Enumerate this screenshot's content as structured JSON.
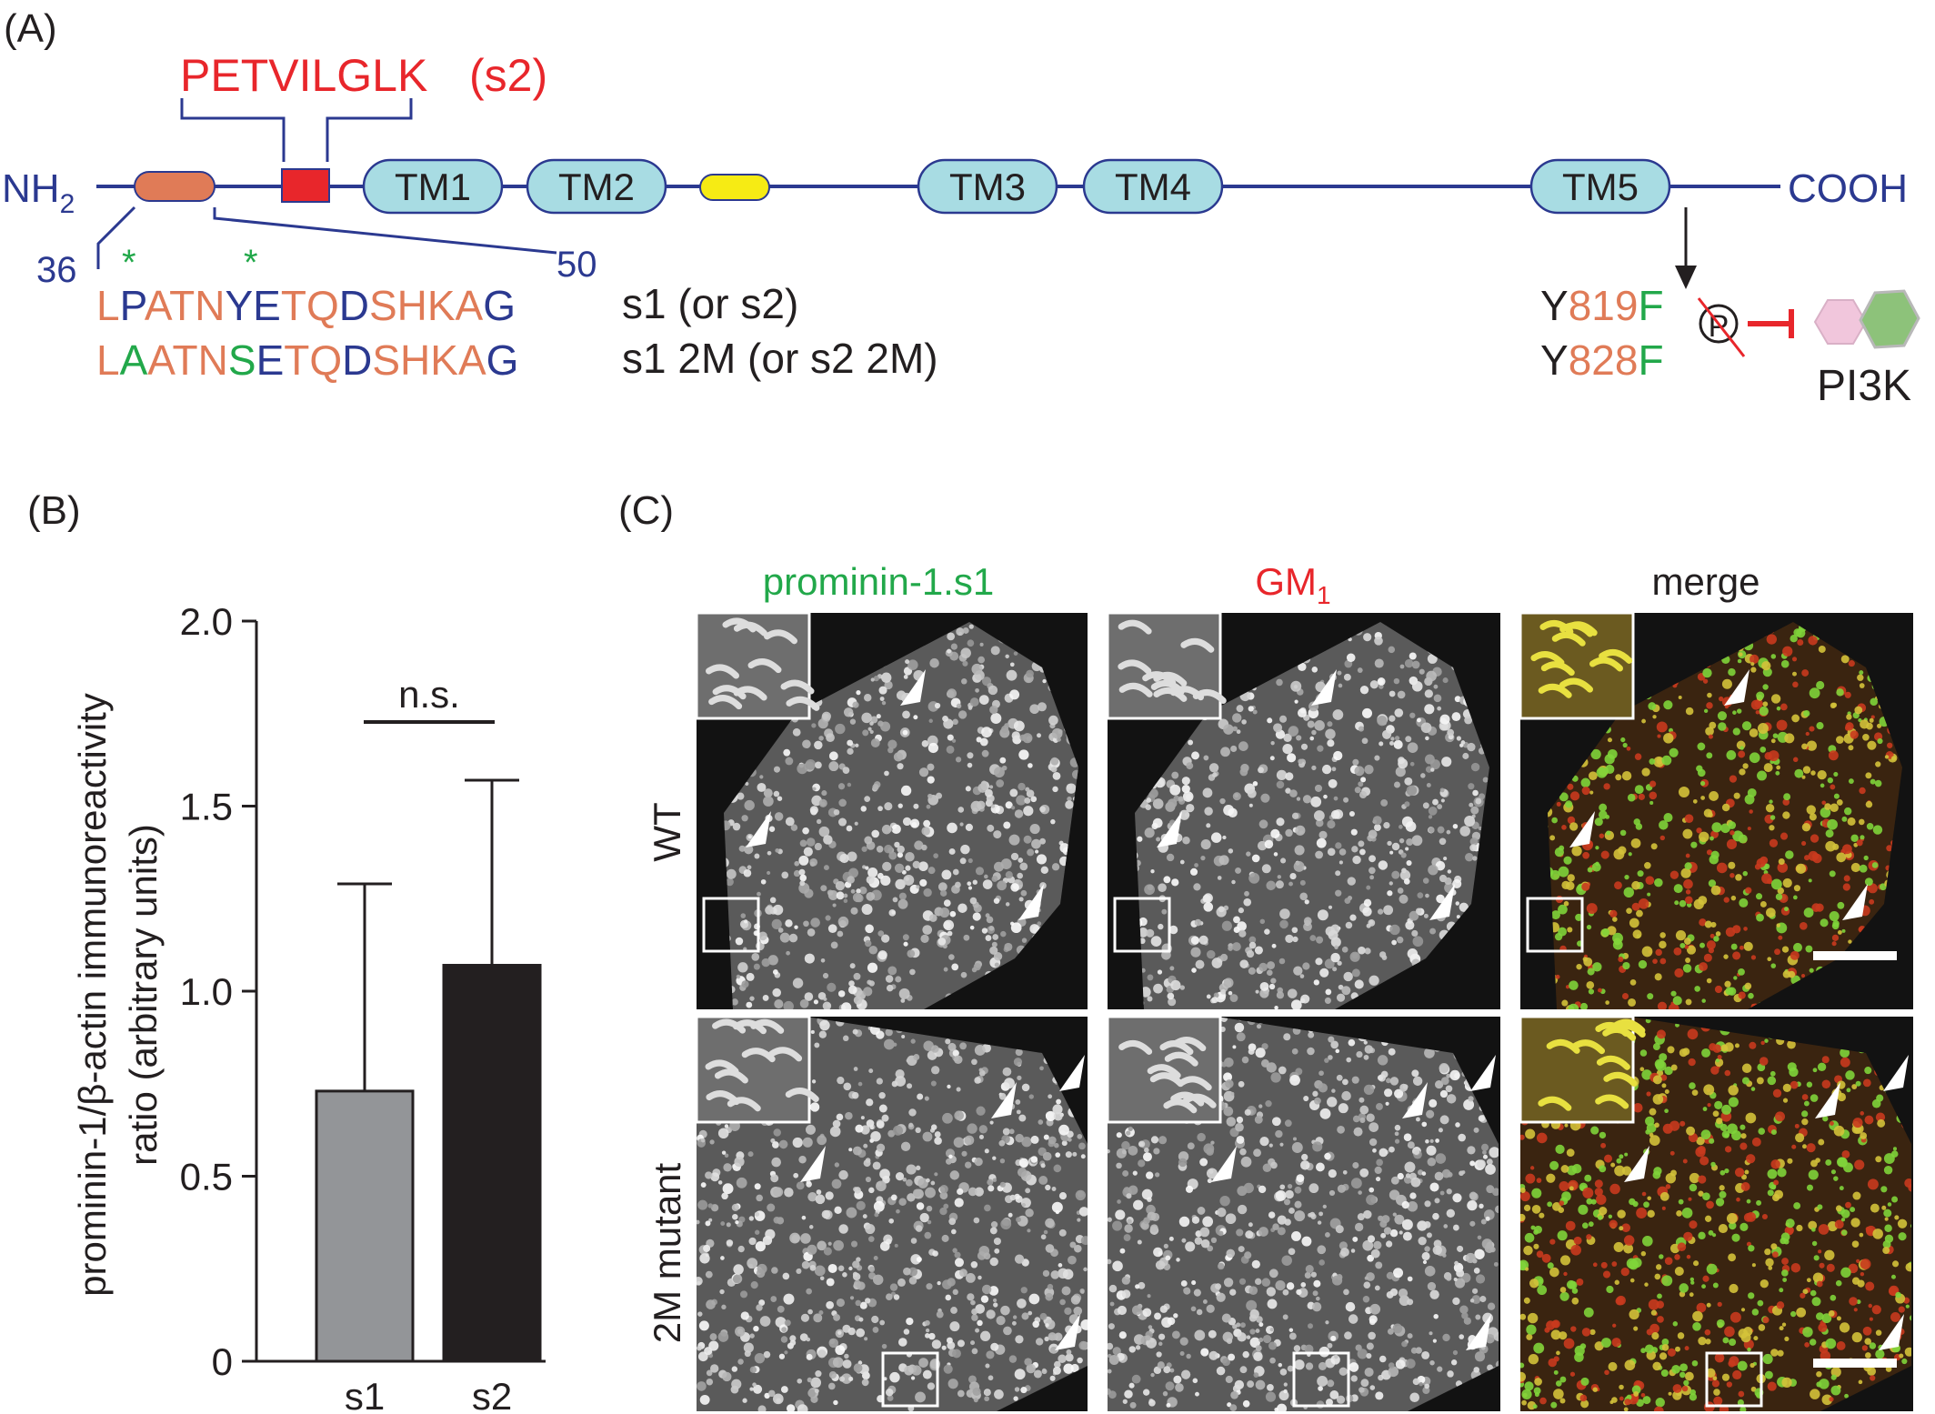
{
  "panel_a": {
    "label": "(A)",
    "n_terminus": "NH",
    "n_terminus_sub": "2",
    "c_terminus": "COOH",
    "peptide_s2": "PETVILGLK",
    "peptide_s2_tag": "(s2)",
    "domains": [
      "TM1",
      "TM2",
      "TM3",
      "TM4",
      "TM5"
    ],
    "residue_start": "36",
    "residue_end": "50",
    "asterisk": "*",
    "seq_wt": [
      {
        "t": "L",
        "c": "#e07b57"
      },
      {
        "t": "P",
        "c": "#2b3990"
      },
      {
        "t": "ATN",
        "c": "#e07b57"
      },
      {
        "t": "YE",
        "c": "#2b3990"
      },
      {
        "t": "TQ",
        "c": "#e07b57"
      },
      {
        "t": "D",
        "c": "#2b3990"
      },
      {
        "t": "SHKA",
        "c": "#e07b57"
      },
      {
        "t": "G",
        "c": "#2b3990"
      }
    ],
    "seq_mut": [
      {
        "t": "L",
        "c": "#e07b57"
      },
      {
        "t": "A",
        "c": "#22a84a"
      },
      {
        "t": "ATN",
        "c": "#e07b57"
      },
      {
        "t": "S",
        "c": "#22a84a"
      },
      {
        "t": "E",
        "c": "#2b3990"
      },
      {
        "t": "TQ",
        "c": "#e07b57"
      },
      {
        "t": "D",
        "c": "#2b3990"
      },
      {
        "t": "SHKA",
        "c": "#e07b57"
      },
      {
        "t": "G",
        "c": "#2b3990"
      }
    ],
    "label_wt": "s1 (or s2)",
    "label_mut": "s1 2M (or s2 2M)",
    "mutation1": [
      {
        "t": "Y",
        "c": "#231f20"
      },
      {
        "t": "819",
        "c": "#e07b57"
      },
      {
        "t": "F",
        "c": "#22a84a"
      }
    ],
    "mutation2": [
      {
        "t": "Y",
        "c": "#231f20"
      },
      {
        "t": "828",
        "c": "#e07b57"
      },
      {
        "t": "F",
        "c": "#22a84a"
      }
    ],
    "phospho": "P",
    "pi3k": "PI3K",
    "colors": {
      "backbone": "#2b3990",
      "tm_fill": "#a8dce3",
      "site_orange": "#e07b57",
      "site_red": "#e8262b",
      "site_yellow": "#f6eb14",
      "green": "#22a84a"
    }
  },
  "panel_b": {
    "label": "(B)",
    "significance": "n.s."
  },
  "chart_data": {
    "type": "bar",
    "categories": [
      "s1",
      "s2"
    ],
    "values": [
      0.73,
      1.07
    ],
    "error_upper": [
      1.29,
      1.57
    ],
    "bar_colors": [
      "#939598",
      "#231f20"
    ],
    "ylabel_line1": "prominin-1/β-actin immunoreactivity",
    "ylabel_line2": "ratio (arbitrary units)",
    "ylim": [
      0,
      2.0
    ],
    "yticks": [
      "0",
      "0.5",
      "1.0",
      "1.5",
      "2.0"
    ],
    "grid": false
  },
  "panel_c": {
    "label": "(C)",
    "col_headers": [
      {
        "text": "prominin-1.s1",
        "sub": "",
        "color": "#22a84a"
      },
      {
        "text": "GM",
        "sub": "1",
        "color": "#e8262b"
      },
      {
        "text": "merge",
        "sub": "",
        "color": "#231f20"
      }
    ],
    "row_labels": [
      "WT",
      "2M mutant"
    ]
  }
}
